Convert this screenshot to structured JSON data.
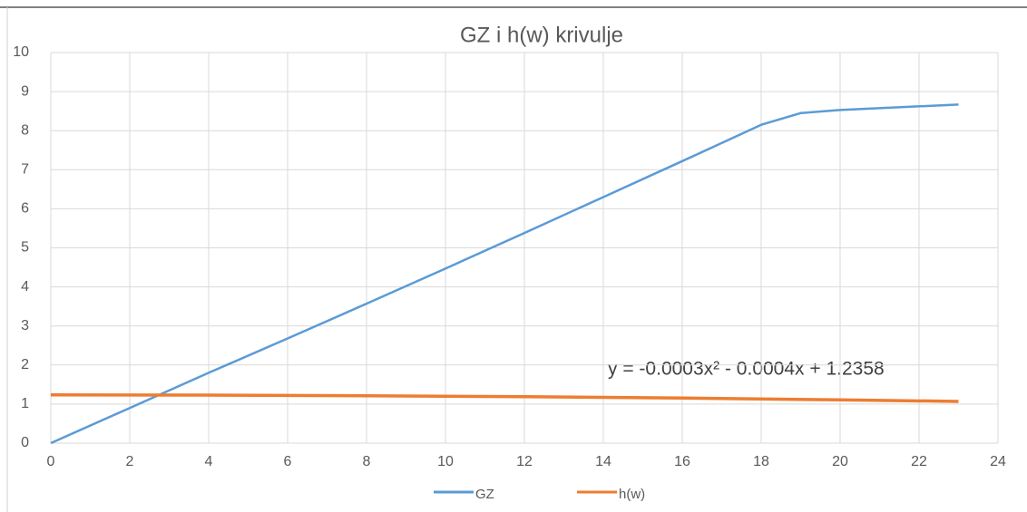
{
  "chart_data": {
    "type": "line",
    "title": "GZ i h(w) krivulje",
    "annotation": "y = -0.0003x² - 0.0004x + 1.2358",
    "series": [
      {
        "name": "GZ",
        "color": "#5b9bd5",
        "x": [
          0,
          2,
          4,
          6,
          8,
          10,
          12,
          14,
          16,
          18,
          19,
          20,
          23
        ],
        "values": [
          0,
          0.9,
          1.8,
          2.68,
          3.57,
          4.47,
          5.38,
          6.3,
          7.22,
          8.15,
          8.45,
          8.53,
          8.67
        ]
      },
      {
        "name": "h(w)",
        "color": "#ed7d31",
        "x": [
          0,
          4,
          8,
          12,
          16,
          20,
          23
        ],
        "values": [
          1.236,
          1.229,
          1.213,
          1.188,
          1.153,
          1.108,
          1.068
        ]
      }
    ],
    "xlim": [
      0,
      24
    ],
    "xticks": [
      0,
      2,
      4,
      6,
      8,
      10,
      12,
      14,
      16,
      18,
      20,
      22,
      24
    ],
    "ylim": [
      0,
      10
    ],
    "yticks": [
      0,
      1,
      2,
      3,
      4,
      5,
      6,
      7,
      8,
      9,
      10
    ],
    "grid": true,
    "legend": "bottom"
  }
}
